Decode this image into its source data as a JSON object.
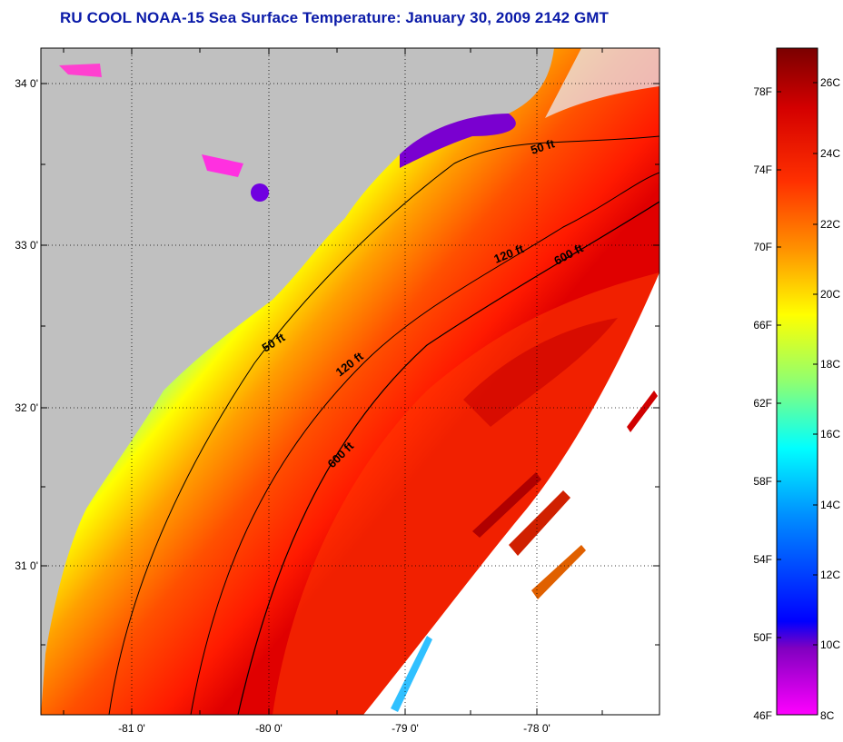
{
  "title": "RU COOL  NOAA-15  Sea Surface Temperature:  January 30, 2009 2142 GMT",
  "map": {
    "lat_labels": [
      "34 0'",
      "33 0'",
      "32 0'",
      "31 0'"
    ],
    "lon_labels": [
      "-81 0'",
      "-80 0'",
      "-79 0'",
      "-78 0'"
    ],
    "contour_labels": [
      "50 ft",
      "120 ft",
      "600 ft",
      "50 ft",
      "120 ft",
      "600 ft"
    ],
    "land_color": "#c0c0c0",
    "cloud_color": "#ffffff"
  },
  "colorbar": {
    "fahrenheit_labels": [
      "78F",
      "74F",
      "70F",
      "66F",
      "62F",
      "58F",
      "54F",
      "50F",
      "46F"
    ],
    "celsius_labels": [
      "26C",
      "24C",
      "22C",
      "20C",
      "18C",
      "16C",
      "14C",
      "12C",
      "10C",
      "8C"
    ],
    "colors": [
      "#8b0000",
      "#ff0000",
      "#ff8000",
      "#ffff00",
      "#7fff7f",
      "#00ffff",
      "#0080ff",
      "#0000ff",
      "#8000ff",
      "#ff00ff"
    ]
  }
}
